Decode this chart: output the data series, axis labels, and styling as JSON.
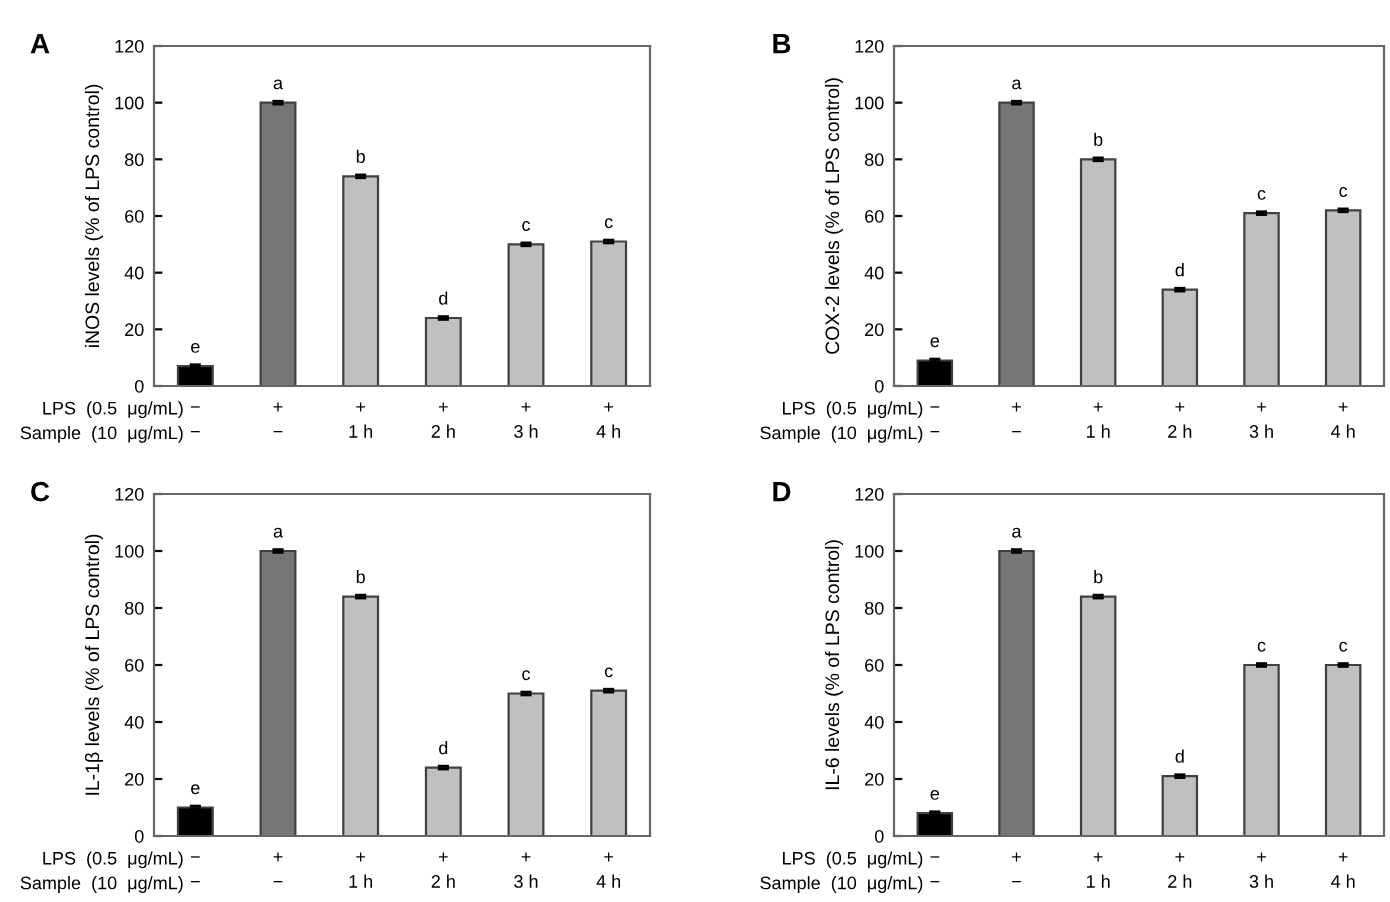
{
  "chart_data": [
    {
      "type": "bar",
      "title": "A",
      "ylabel": "iNOS levels (% of LPS control)",
      "categories": [
        "−\n−",
        "+\n−",
        "+\n1 h",
        "+\n2 h",
        "+\n3 h",
        "+\n4 h"
      ],
      "values": [
        7,
        100,
        74,
        24,
        50,
        51
      ],
      "errors": [
        0.5,
        0.5,
        0.5,
        0.5,
        0.5,
        0.5
      ],
      "value_labels": [
        "e",
        "a",
        "b",
        "d",
        "c",
        "c"
      ],
      "colors": [
        "#000000",
        "#767676",
        "#c0c0c0",
        "#c0c0c0",
        "#c0c0c0",
        "#c0c0c0"
      ],
      "ylim": [
        0,
        120
      ],
      "yticks": [
        0,
        20,
        40,
        60,
        80,
        100,
        120
      ],
      "grid": false,
      "legend": false,
      "annotations": [
        "LPS  (0.5  μg/mL)\nSample  (10  μg/mL)"
      ]
    },
    {
      "type": "bar",
      "title": "B",
      "ylabel": "COX-2 levels (% of LPS control)",
      "categories": [
        "−\n−",
        "+\n−",
        "+\n1 h",
        "+\n2 h",
        "+\n3 h",
        "+\n4 h"
      ],
      "values": [
        9,
        100,
        80,
        34,
        61,
        62
      ],
      "errors": [
        0.5,
        0.5,
        0.5,
        0.5,
        0.5,
        0.5
      ],
      "value_labels": [
        "e",
        "a",
        "b",
        "d",
        "c",
        "c"
      ],
      "colors": [
        "#000000",
        "#767676",
        "#c0c0c0",
        "#c0c0c0",
        "#c0c0c0",
        "#c0c0c0"
      ],
      "ylim": [
        0,
        120
      ],
      "yticks": [
        0,
        20,
        40,
        60,
        80,
        100,
        120
      ],
      "grid": false,
      "legend": false,
      "annotations": [
        "LPS  (0.5  μg/mL)\nSample  (10  μg/mL)"
      ]
    },
    {
      "type": "bar",
      "title": "C",
      "ylabel": "IL-1β levels (% of LPS control)",
      "categories": [
        "−\n−",
        "+\n−",
        "+\n1 h",
        "+\n2 h",
        "+\n3 h",
        "+\n4 h"
      ],
      "values": [
        10,
        100,
        84,
        24,
        50,
        51
      ],
      "errors": [
        0.5,
        0.5,
        0.5,
        0.5,
        0.5,
        0.5
      ],
      "value_labels": [
        "e",
        "a",
        "b",
        "d",
        "c",
        "c"
      ],
      "colors": [
        "#000000",
        "#767676",
        "#c0c0c0",
        "#c0c0c0",
        "#c0c0c0",
        "#c0c0c0"
      ],
      "ylim": [
        0,
        120
      ],
      "yticks": [
        0,
        20,
        40,
        60,
        80,
        100,
        120
      ],
      "grid": false,
      "legend": false,
      "annotations": [
        "LPS  (0.5  μg/mL)\nSample  (10  μg/mL)"
      ]
    },
    {
      "type": "bar",
      "title": "D",
      "ylabel": "IL-6 levels (% of LPS control)",
      "categories": [
        "−\n−",
        "+\n−",
        "+\n1 h",
        "+\n2 h",
        "+\n3 h",
        "+\n4 h"
      ],
      "values": [
        8,
        100,
        84,
        21,
        60,
        60
      ],
      "errors": [
        0.5,
        0.5,
        0.5,
        0.5,
        0.5,
        0.5
      ],
      "value_labels": [
        "e",
        "a",
        "b",
        "d",
        "c",
        "c"
      ],
      "colors": [
        "#000000",
        "#767676",
        "#c0c0c0",
        "#c0c0c0",
        "#c0c0c0",
        "#c0c0c0"
      ],
      "ylim": [
        0,
        120
      ],
      "yticks": [
        0,
        20,
        40,
        60,
        80,
        100,
        120
      ],
      "grid": false,
      "legend": false,
      "annotations": [
        "LPS  (0.5  μg/mL)\nSample  (10  μg/mL)"
      ]
    }
  ]
}
